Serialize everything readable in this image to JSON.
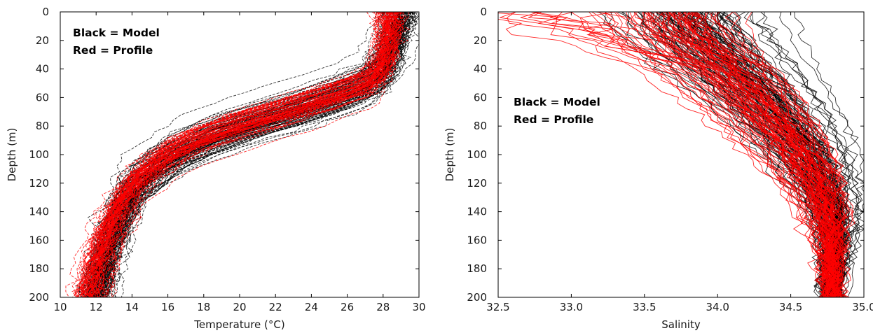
{
  "chart_data": [
    {
      "type": "line",
      "xlabel": "Temperature (°C)",
      "ylabel": "Depth (m)",
      "xlim": [
        10,
        30
      ],
      "ylim": [
        0,
        200
      ],
      "y_inverted": true,
      "x_ticks": [
        "10",
        "12",
        "14",
        "16",
        "18",
        "20",
        "22",
        "24",
        "26",
        "28",
        "30"
      ],
      "y_ticks": [
        "0",
        "20",
        "40",
        "60",
        "80",
        "100",
        "120",
        "140",
        "160",
        "180",
        "200"
      ],
      "grid": false,
      "legend_placement": "top-left",
      "legend_lines": [
        "Black = Model",
        "Red = Profile"
      ],
      "series": [
        {
          "key": "model",
          "color": "#000000",
          "count": 120,
          "depth": [
            0,
            10,
            20,
            30,
            40,
            50,
            60,
            70,
            80,
            90,
            100,
            110,
            120,
            130,
            140,
            150,
            160,
            170,
            180,
            190,
            200
          ],
          "values": [
            29.0,
            28.8,
            28.6,
            28.3,
            28.0,
            27.2,
            25.3,
            23.0,
            20.3,
            18.1,
            16.5,
            15.3,
            14.4,
            13.8,
            13.4,
            13.1,
            12.8,
            12.5,
            12.3,
            12.1,
            11.9
          ]
        },
        {
          "key": "profile",
          "color": "#ff0000",
          "count": 80,
          "depth": [
            0,
            10,
            20,
            30,
            40,
            50,
            60,
            70,
            80,
            90,
            100,
            110,
            120,
            130,
            140,
            150,
            160,
            170,
            180,
            190,
            200
          ],
          "values": [
            28.3,
            28.3,
            28.2,
            28.1,
            27.9,
            27.2,
            25.0,
            22.5,
            19.8,
            17.6,
            16.1,
            15.0,
            14.2,
            13.6,
            13.2,
            12.8,
            12.5,
            12.2,
            12.0,
            11.8,
            11.6
          ]
        }
      ]
    },
    {
      "type": "line",
      "xlabel": "Salinity",
      "ylabel": "Depth (m)",
      "xlim": [
        32.5,
        35.0
      ],
      "ylim": [
        0,
        200
      ],
      "y_inverted": true,
      "x_ticks": [
        "32.5",
        "33.0",
        "33.5",
        "34.0",
        "34.5",
        "35.0"
      ],
      "y_ticks": [
        "0",
        "20",
        "40",
        "60",
        "80",
        "100",
        "120",
        "140",
        "160",
        "180",
        "200"
      ],
      "grid": false,
      "legend_placement": "upper-left",
      "legend_lines": [
        "Black = Model",
        "Red = Profile"
      ],
      "series": [
        {
          "key": "model",
          "color": "#000000",
          "count": 110,
          "depth": [
            0,
            10,
            20,
            30,
            40,
            50,
            60,
            70,
            80,
            90,
            100,
            110,
            120,
            130,
            140,
            150,
            160,
            170,
            180,
            190,
            200
          ],
          "values": [
            33.75,
            33.82,
            33.9,
            34.0,
            34.1,
            34.2,
            34.3,
            34.38,
            34.46,
            34.54,
            34.6,
            34.66,
            34.71,
            34.75,
            34.78,
            34.8,
            34.8,
            34.8,
            34.79,
            34.78,
            34.78
          ]
        },
        {
          "key": "profile",
          "color": "#ff0000",
          "count": 80,
          "depth": [
            0,
            10,
            20,
            30,
            40,
            50,
            60,
            70,
            80,
            90,
            100,
            110,
            120,
            130,
            140,
            150,
            160,
            170,
            180,
            190,
            200
          ],
          "values": [
            33.7,
            33.75,
            33.82,
            33.95,
            34.05,
            34.15,
            34.25,
            34.33,
            34.42,
            34.5,
            34.57,
            34.63,
            34.68,
            34.72,
            34.75,
            34.77,
            34.78,
            34.78,
            34.78,
            34.78,
            34.78
          ]
        }
      ]
    }
  ]
}
